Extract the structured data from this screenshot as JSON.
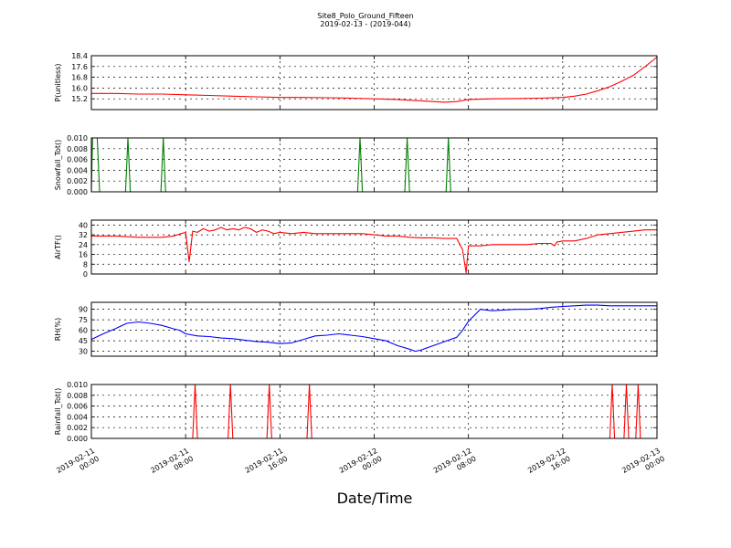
{
  "figure": {
    "title": "Site8_Polo_Ground_Fifteen",
    "subtitle": "2019-02-13 - (2019-044)",
    "xlabel": "Date/Time",
    "x_ticks": [
      {
        "line1": "2019-02-11",
        "line2": "00:00"
      },
      {
        "line1": "2019-02-11",
        "line2": "08:00"
      },
      {
        "line1": "2019-02-11",
        "line2": "16:00"
      },
      {
        "line1": "2019-02-12",
        "line2": "00:00"
      },
      {
        "line1": "2019-02-12",
        "line2": "08:00"
      },
      {
        "line1": "2019-02-12",
        "line2": "16:00"
      },
      {
        "line1": "2019-02-13",
        "line2": "00:00"
      }
    ]
  },
  "chart_data": [
    {
      "type": "line",
      "ylabel": "P(unitless)",
      "color": "#ff0000",
      "xlim": [
        "2019-02-11 00:00",
        "2019-02-13 00:00"
      ],
      "ylim": [
        14.4,
        18.4
      ],
      "yticks": [
        "15.2",
        "16.0",
        "16.8",
        "17.6",
        "18.4"
      ],
      "grid": true,
      "series": [
        {
          "x_hours": [
            0,
            2,
            4,
            6,
            8,
            10,
            12,
            14,
            16,
            18,
            20,
            22,
            24,
            26,
            28,
            30,
            31,
            32,
            34,
            36,
            38,
            40,
            41,
            42,
            43,
            44,
            45,
            46,
            47,
            48
          ],
          "values": [
            15.6,
            15.6,
            15.55,
            15.55,
            15.5,
            15.45,
            15.4,
            15.35,
            15.3,
            15.3,
            15.28,
            15.25,
            15.2,
            15.15,
            15.05,
            14.95,
            15.0,
            15.15,
            15.2,
            15.22,
            15.25,
            15.3,
            15.4,
            15.55,
            15.8,
            16.1,
            16.5,
            16.95,
            17.6,
            18.3
          ]
        }
      ]
    },
    {
      "type": "line",
      "ylabel": "Snowfall_Tot()",
      "color": "#008000",
      "xlim": [
        "2019-02-11 00:00",
        "2019-02-13 00:00"
      ],
      "ylim": [
        0,
        0.01
      ],
      "yticks": [
        "0.000",
        "0.002",
        "0.004",
        "0.006",
        "0.008",
        "0.010"
      ],
      "grid": true,
      "series": [
        {
          "x_hours": [
            0,
            0.1,
            0.3,
            0.5,
            0.7,
            2.9,
            3.1,
            3.3,
            5.9,
            6.1,
            6.3,
            22.6,
            22.8,
            23.0,
            26.6,
            26.8,
            27.0,
            30.1,
            30.3,
            30.5,
            48
          ],
          "values": [
            0,
            0.01,
            0.01,
            0.01,
            0,
            0,
            0.01,
            0,
            0,
            0.01,
            0,
            0,
            0.01,
            0,
            0,
            0.01,
            0,
            0,
            0.01,
            0,
            0
          ]
        }
      ]
    },
    {
      "type": "line",
      "ylabel": "AirTF()",
      "color": "#ff0000",
      "xlim": [
        "2019-02-11 00:00",
        "2019-02-13 00:00"
      ],
      "ylim": [
        0,
        44
      ],
      "yticks": [
        "0",
        "8",
        "16",
        "24",
        "32",
        "40"
      ],
      "grid": true,
      "series": [
        {
          "x_hours": [
            0,
            1,
            2,
            3,
            4,
            5,
            6,
            7,
            7.6,
            8,
            8.3,
            8.6,
            9,
            9.5,
            10,
            10.5,
            11,
            11.5,
            12,
            12.5,
            13,
            13.5,
            14,
            14.5,
            15,
            15.5,
            16,
            17,
            18,
            19,
            20,
            21,
            22,
            23,
            24,
            25,
            26,
            27,
            28,
            29,
            30,
            31,
            31.5,
            31.8,
            32,
            32.3,
            33,
            34,
            35,
            36,
            37,
            38,
            39,
            39.3,
            39.5,
            40,
            41,
            42,
            43,
            44,
            45,
            46,
            47,
            48
          ],
          "values": [
            31,
            31,
            31,
            30.5,
            30,
            30,
            30,
            31,
            33,
            34,
            10,
            35,
            34,
            37,
            35,
            36,
            38,
            36,
            37,
            36,
            38,
            37,
            34,
            36,
            35,
            33,
            34,
            33,
            34,
            33,
            33,
            33,
            33,
            33,
            32,
            31,
            31,
            30,
            29.5,
            29.5,
            29,
            29,
            20,
            1,
            23,
            23,
            23,
            24,
            24,
            24,
            24,
            25,
            25,
            23,
            26,
            27,
            27,
            29,
            32,
            33,
            34,
            35,
            36,
            36
          ]
        }
      ]
    },
    {
      "type": "line",
      "ylabel": "RH(%)",
      "color": "#0000ff",
      "xlim": [
        "2019-02-11 00:00",
        "2019-02-13 00:00"
      ],
      "ylim": [
        23,
        100
      ],
      "yticks": [
        "30",
        "45",
        "60",
        "75",
        "90"
      ],
      "grid": true,
      "series": [
        {
          "x_hours": [
            0,
            1,
            2,
            3,
            4,
            5,
            6,
            7,
            7.5,
            8,
            9,
            10,
            11,
            12,
            13,
            14,
            15,
            16,
            17,
            18,
            19,
            20,
            21,
            22,
            23,
            24,
            25,
            26,
            27,
            27.5,
            28,
            29,
            30,
            31,
            31.5,
            32,
            33,
            34,
            35,
            36,
            37,
            38,
            39,
            40,
            41,
            42,
            43,
            44,
            45,
            46,
            47,
            48
          ],
          "values": [
            47,
            55,
            62,
            70,
            72,
            70,
            67,
            62,
            60,
            55,
            52,
            51,
            49,
            48,
            46,
            44,
            43,
            41,
            42,
            47,
            52,
            53,
            55,
            53,
            51,
            48,
            45,
            38,
            33,
            30,
            32,
            38,
            44,
            50,
            60,
            73,
            90,
            88,
            89,
            90,
            90,
            91,
            93,
            94,
            95,
            96,
            96,
            95,
            95,
            95,
            95,
            95
          ]
        }
      ]
    },
    {
      "type": "line",
      "ylabel": "Rainfall_Tot()",
      "color": "#ff0000",
      "xlim": [
        "2019-02-11 00:00",
        "2019-02-13 00:00"
      ],
      "ylim": [
        0,
        0.01
      ],
      "yticks": [
        "0.000",
        "0.002",
        "0.004",
        "0.006",
        "0.008",
        "0.010"
      ],
      "grid": true,
      "series": [
        {
          "x_hours": [
            0,
            8.6,
            8.8,
            9.0,
            11.6,
            11.8,
            12.0,
            14.9,
            15.1,
            15.3,
            18.3,
            18.5,
            18.7,
            44.0,
            44.2,
            44.4,
            45.2,
            45.4,
            45.6,
            46.2,
            46.4,
            46.6,
            48
          ],
          "values": [
            0,
            0,
            0.01,
            0,
            0,
            0.01,
            0,
            0,
            0.01,
            0,
            0,
            0.01,
            0,
            0,
            0.01,
            0,
            0,
            0.01,
            0,
            0,
            0.01,
            0,
            0
          ]
        }
      ]
    }
  ]
}
